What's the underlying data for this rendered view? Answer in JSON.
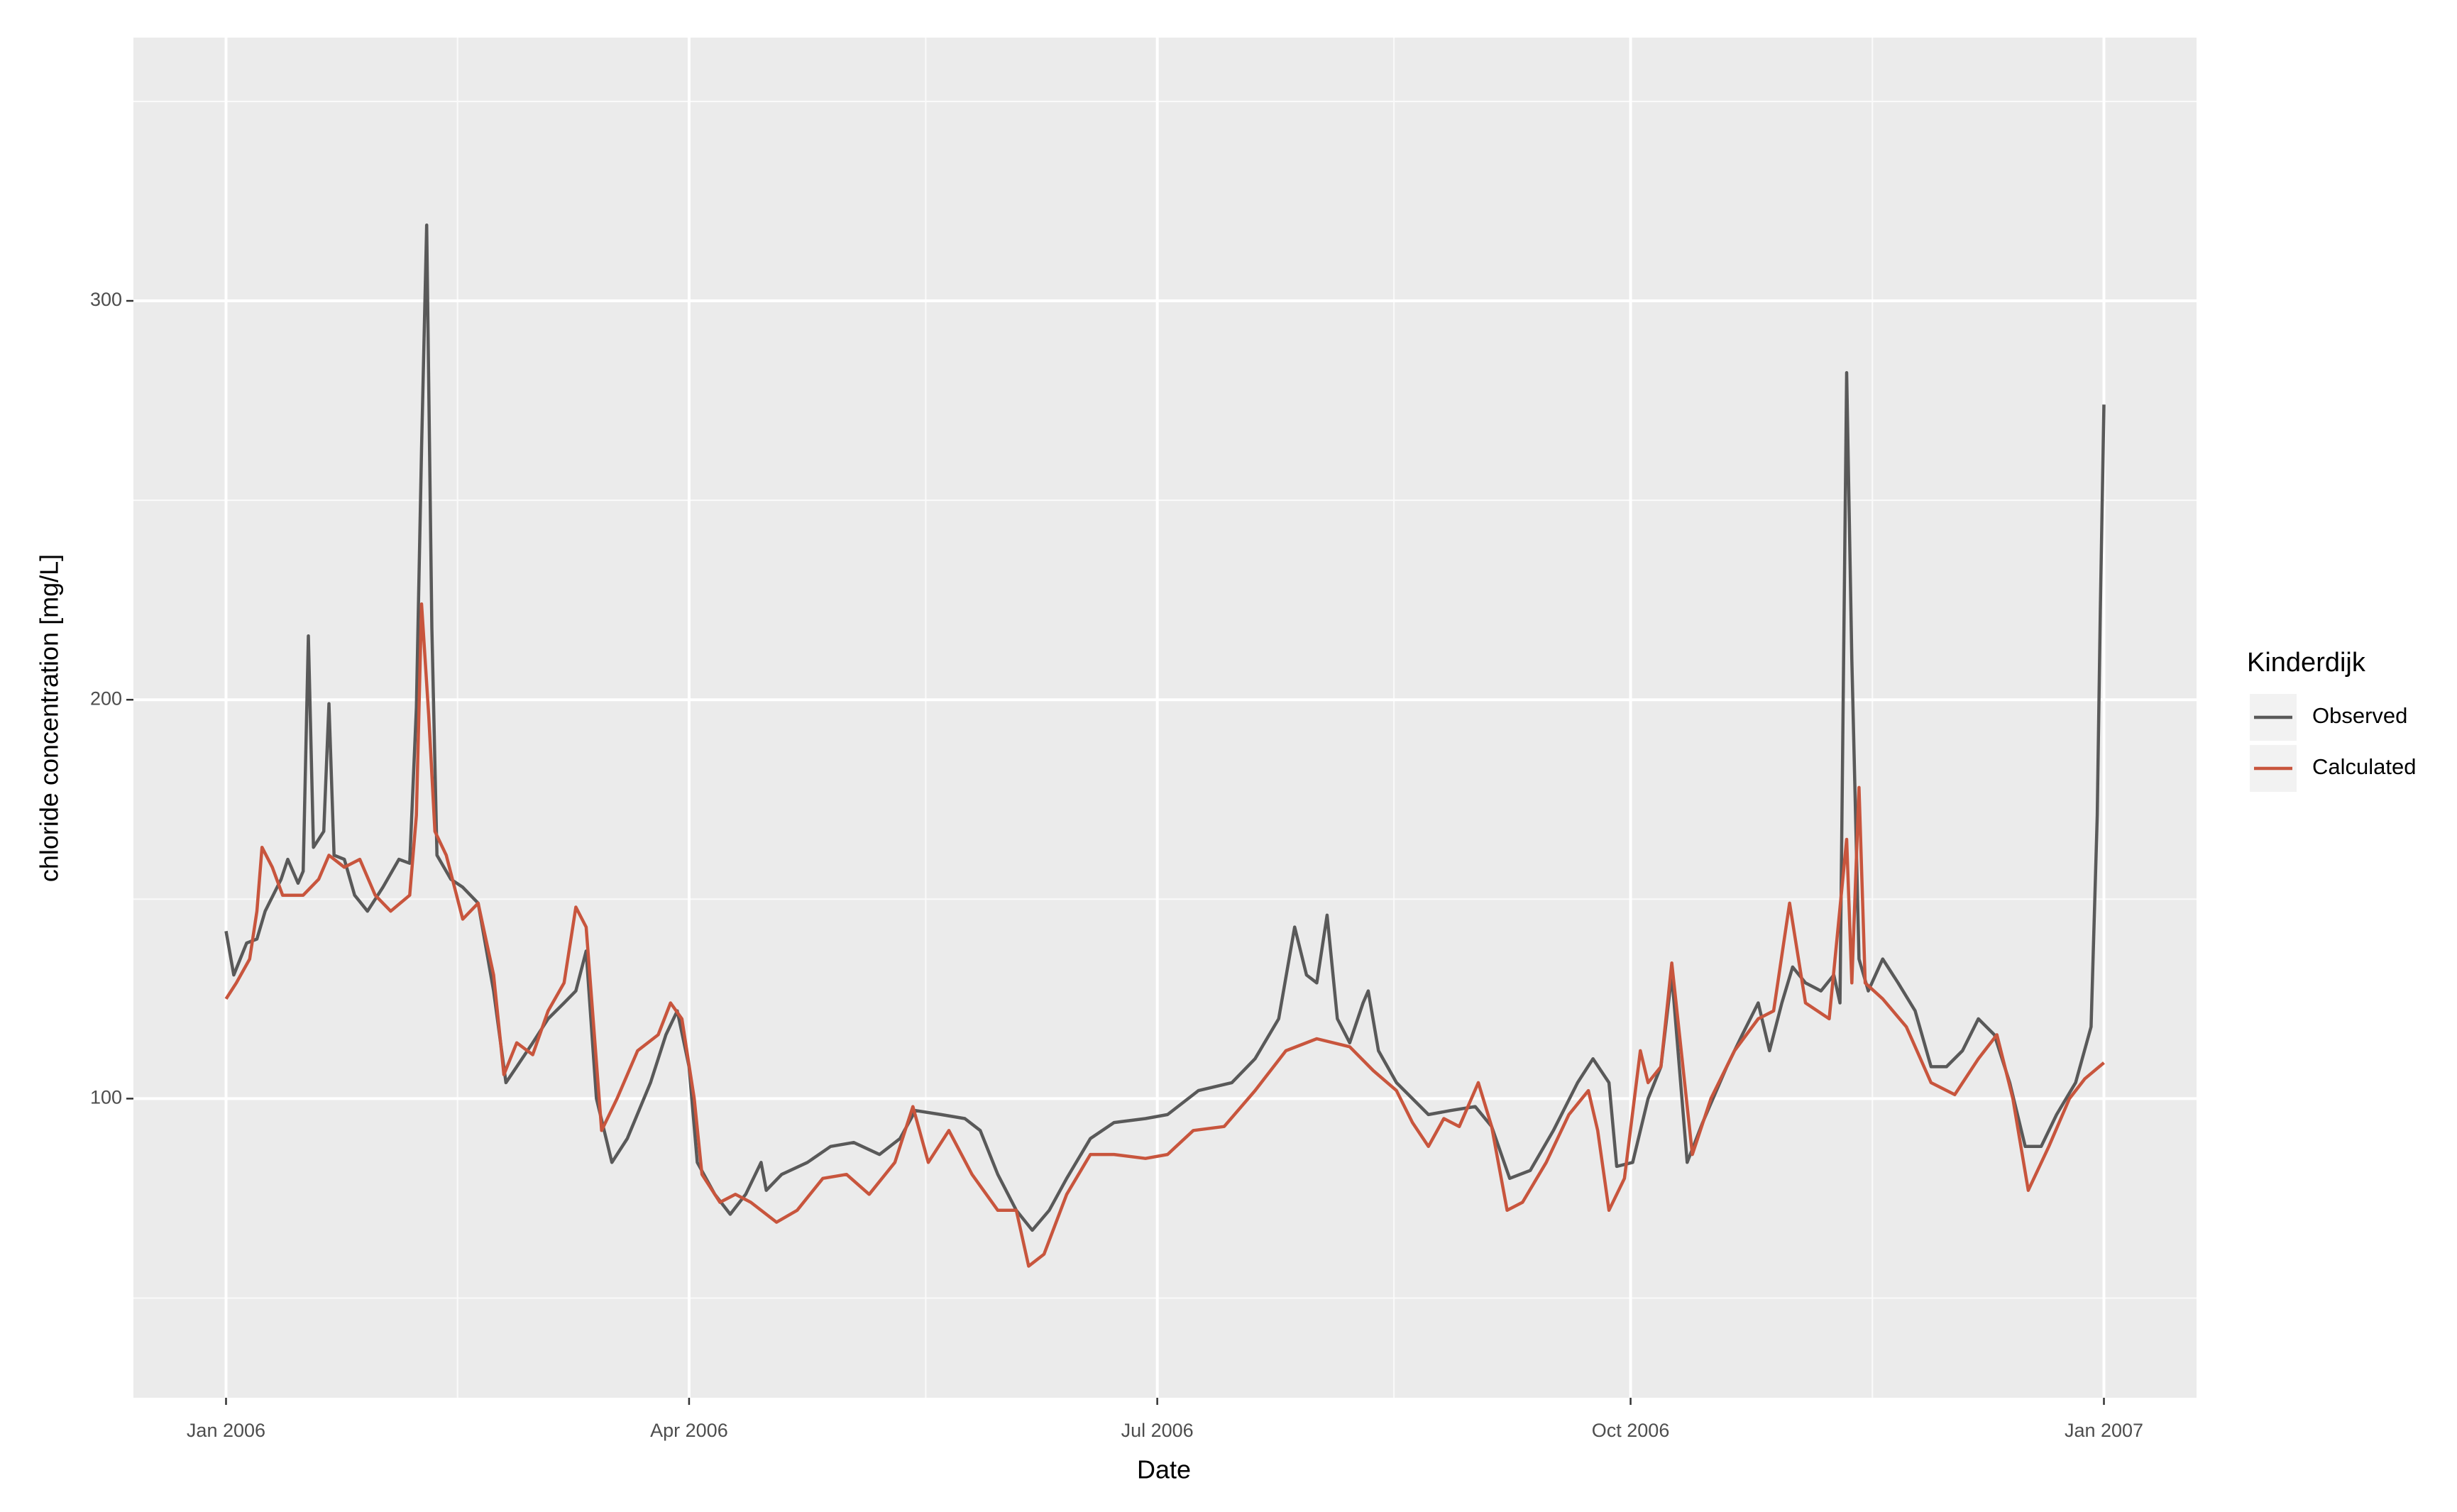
{
  "chart_data": {
    "type": "line",
    "x_label": "Date",
    "y_label": "chloride concentration [mg/L]",
    "legend_title": "Kinderdijk",
    "legend": "right",
    "grid": true,
    "xlim": [
      -18,
      383
    ],
    "xticks": [
      {
        "value": 0,
        "label": "Jan 2006"
      },
      {
        "value": 90,
        "label": "Apr 2006"
      },
      {
        "value": 181,
        "label": "Jul 2006"
      },
      {
        "value": 273,
        "label": "Oct 2006"
      },
      {
        "value": 365,
        "label": "Jan 2007"
      }
    ],
    "minor_xticks": [
      45,
      136,
      227,
      320
    ],
    "ylim": [
      25,
      366
    ],
    "yticks": [
      100,
      200,
      300
    ],
    "minor_yticks": [
      50,
      150,
      250,
      350
    ],
    "series": [
      {
        "name": "Observed",
        "color": "#595959",
        "x": [
          0,
          1.5,
          4,
          6,
          7.6,
          10.7,
          12,
          14,
          15,
          16,
          17,
          19,
          20,
          21,
          23,
          25,
          27.5,
          30.5,
          33.6,
          35.7,
          37,
          38,
          39,
          40,
          41,
          43.7,
          46,
          49,
          52,
          54.4,
          56.5,
          59.6,
          62.6,
          65.7,
          68,
          70,
          72,
          75,
          78,
          82.5,
          85.5,
          87.7,
          90,
          91.6,
          95,
          98,
          101,
          104,
          105,
          108,
          113,
          117.5,
          122,
          127,
          131,
          134,
          139,
          143.6,
          146.6,
          150,
          153.6,
          156.7,
          160,
          163.4,
          168,
          172.6,
          178.7,
          183,
          189,
          195.5,
          200,
          204.6,
          207.7,
          210,
          212,
          214,
          216,
          218.4,
          221,
          222,
          224,
          227.5,
          230.6,
          233.7,
          238,
          242.8,
          246,
          249.5,
          253.5,
          258,
          262.7,
          265.7,
          268.8,
          270.3,
          273.4,
          276.4,
          278.9,
          281,
          284,
          287,
          291.7,
          294.7,
          297.8,
          300,
          302.4,
          304.5,
          307,
          310,
          312.5,
          313.7,
          315,
          316,
          317.4,
          319.2,
          322,
          325,
          328.3,
          331.4,
          334.4,
          337.5,
          340.6,
          343.7,
          346.7,
          349.7,
          352.8,
          355.8,
          359.5,
          362.5,
          363.7,
          364.3,
          365
        ],
        "values": [
          142,
          131,
          139,
          140,
          147,
          155,
          160,
          154,
          157,
          216,
          163,
          167,
          199,
          161,
          160,
          151,
          147,
          153,
          160,
          159,
          198,
          263,
          319,
          218,
          161,
          155,
          153,
          149,
          127,
          104,
          108,
          114,
          120,
          124,
          127,
          137,
          100,
          84,
          90,
          104,
          116,
          122,
          108,
          84,
          76,
          71,
          76,
          84,
          77,
          81,
          84,
          88,
          89,
          86,
          90,
          97,
          96,
          95,
          92,
          81,
          72,
          67,
          72,
          80,
          90,
          94,
          95,
          96,
          102,
          104,
          110,
          120,
          143,
          131,
          129,
          146,
          120,
          114,
          124,
          127,
          112,
          104,
          100,
          96,
          97,
          98,
          93,
          80,
          82,
          92,
          104,
          110,
          104,
          83,
          84,
          100,
          108,
          131,
          84,
          94,
          108,
          116,
          124,
          112,
          124,
          133,
          129,
          127,
          131,
          124,
          282,
          210,
          135,
          127,
          135,
          129,
          122,
          108,
          108,
          112,
          120,
          116,
          104,
          88,
          88,
          96,
          104,
          118,
          171,
          222,
          274
        ]
      },
      {
        "name": "Calculated",
        "color": "#c8553d",
        "x": [
          0,
          2,
          4.6,
          6,
          7,
          9,
          11,
          15,
          18,
          20,
          23,
          26,
          29,
          32,
          35.7,
          37,
          38,
          39.4,
          40.6,
          42.8,
          46,
          49,
          52,
          54,
          56.5,
          59.6,
          62.6,
          65.7,
          68,
          70,
          73,
          76,
          80,
          84,
          86.4,
          88.6,
          91,
          92.5,
          96,
          99,
          102,
          107,
          111,
          116,
          120.6,
          125,
          130,
          133.5,
          136.5,
          140.5,
          145,
          150,
          153.6,
          156,
          159,
          163.4,
          168,
          172.6,
          178.7,
          183,
          188,
          194,
          200,
          206,
          212,
          218.4,
          223,
          227.5,
          230.6,
          233.7,
          236.7,
          239.7,
          243.4,
          246,
          249,
          252,
          256.6,
          261,
          264.8,
          266.6,
          268.8,
          271.8,
          274.9,
          276.4,
          278.9,
          281,
          285,
          288.6,
          293.2,
          297.8,
          300.8,
          303.9,
          307,
          311.6,
          315,
          316,
          317.4,
          318.6,
          322,
          326.6,
          331.4,
          336,
          340.6,
          344.2,
          347.3,
          350.3,
          354.3,
          358.3,
          361.3,
          365
        ],
        "values": [
          125,
          129,
          135,
          147,
          163,
          158,
          151,
          151,
          155,
          161,
          158,
          160,
          151,
          147,
          151,
          171,
          224,
          196,
          167,
          161,
          145,
          149,
          131,
          106,
          114,
          111,
          122,
          129,
          148,
          143,
          92,
          100,
          112,
          116,
          124,
          120,
          100,
          81,
          74,
          76,
          74,
          69,
          72,
          80,
          81,
          76,
          84,
          98,
          84,
          92,
          81,
          72,
          72,
          58,
          61,
          76,
          86,
          86,
          85,
          86,
          92,
          93,
          102,
          112,
          115,
          113,
          107,
          102,
          94,
          88,
          95,
          93,
          104,
          93,
          72,
          74,
          84,
          96,
          102,
          92,
          72,
          80,
          112,
          104,
          108,
          134,
          86,
          100,
          112,
          120,
          122,
          149,
          124,
          120,
          165,
          129,
          178,
          129,
          125,
          118,
          104,
          101,
          110,
          116,
          100,
          77,
          88,
          100,
          105,
          109
        ]
      }
    ]
  }
}
